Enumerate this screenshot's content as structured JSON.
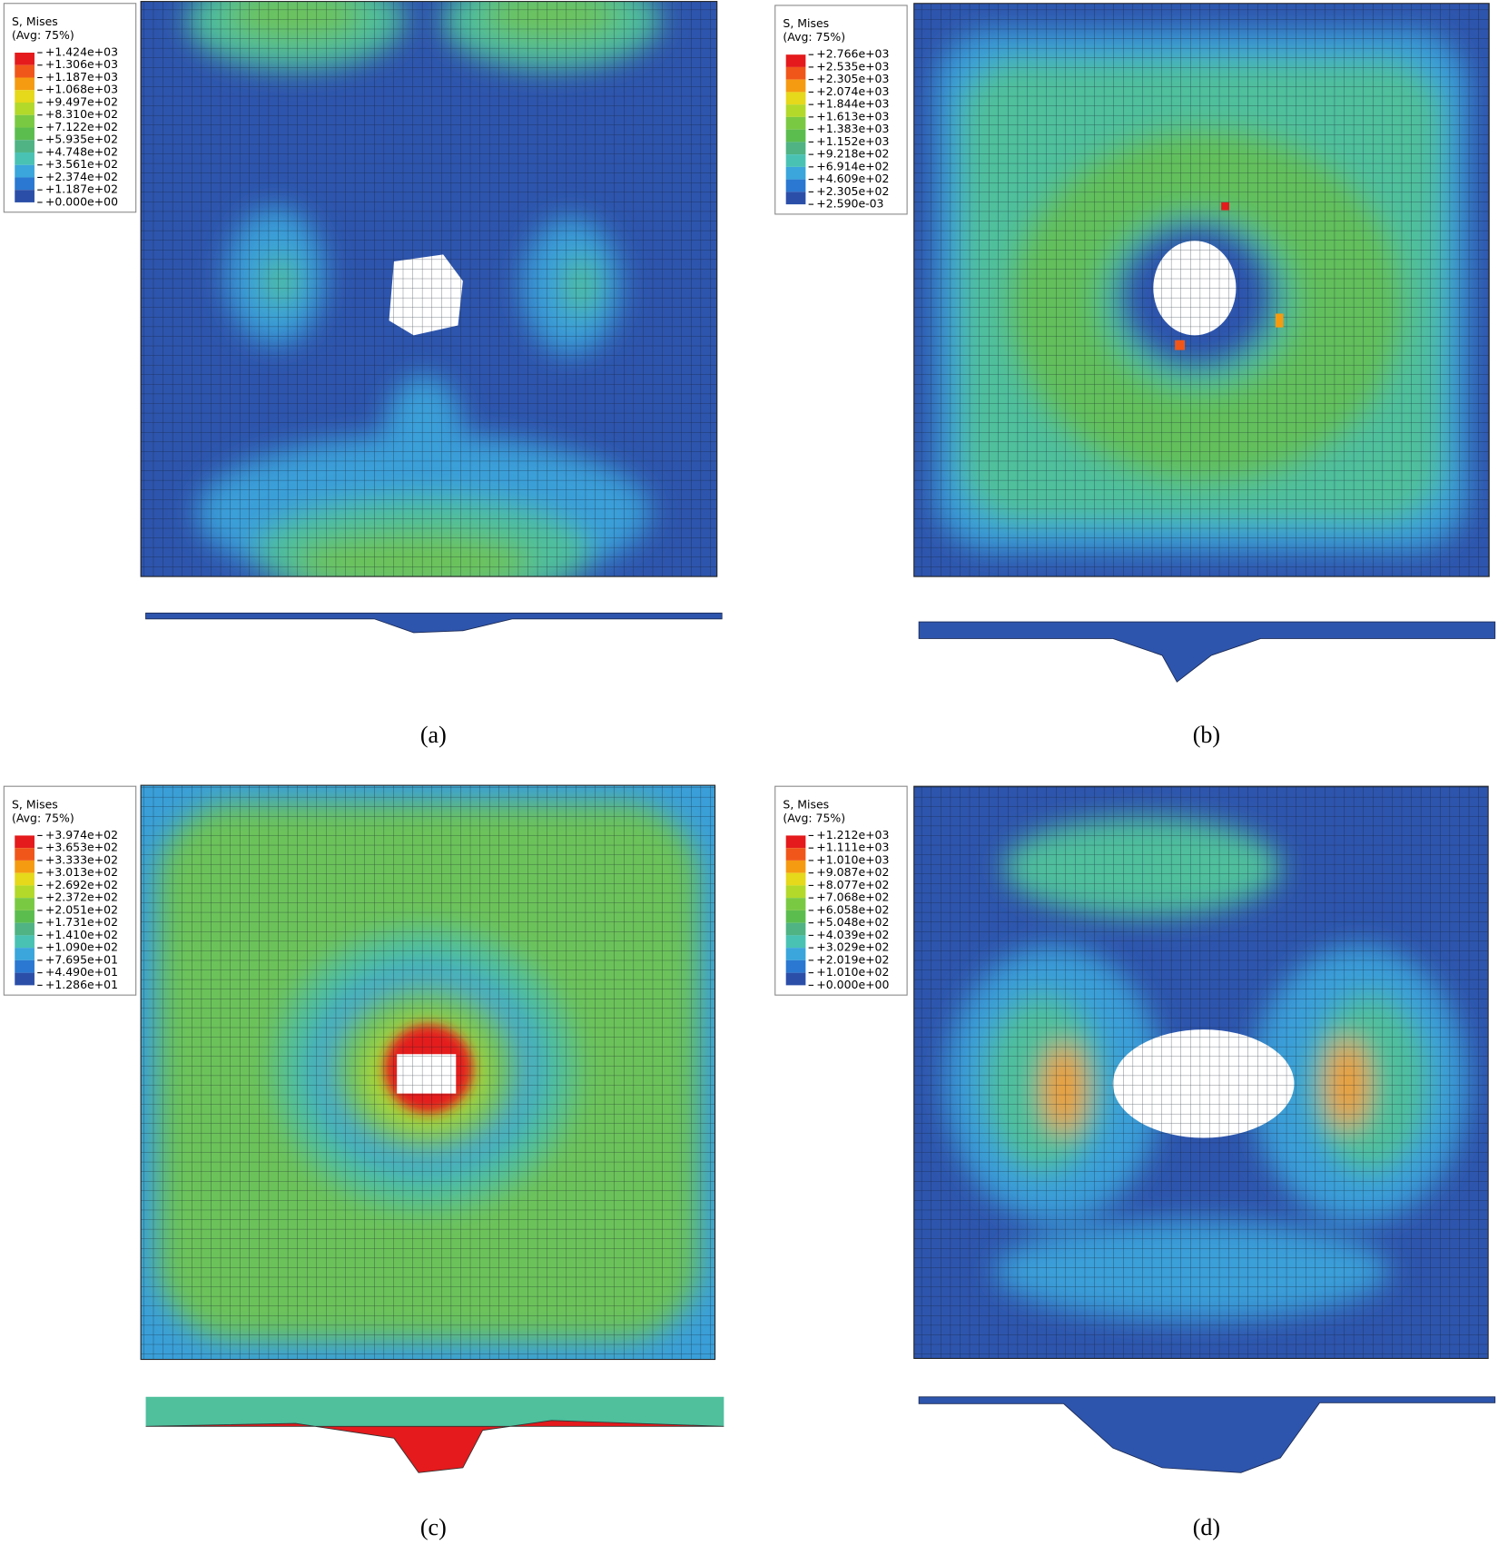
{
  "panels": [
    {
      "legend": {
        "title": "S, Mises",
        "subtitle": "(Avg: 75%)",
        "levels": [
          "+1.424e+03",
          "+1.306e+03",
          "+1.187e+03",
          "+1.068e+03",
          "+9.497e+02",
          "+8.310e+02",
          "+7.122e+02",
          "+5.935e+02",
          "+4.748e+02",
          "+3.561e+02",
          "+2.374e+02",
          "+1.187e+02",
          "+0.000e+00"
        ]
      },
      "caption": "(a)"
    },
    {
      "legend": {
        "title": "S, Mises",
        "subtitle": "(Avg: 75%)",
        "levels": [
          "+2.766e+03",
          "+2.535e+03",
          "+2.305e+03",
          "+2.074e+03",
          "+1.844e+03",
          "+1.613e+03",
          "+1.383e+03",
          "+1.152e+03",
          "+9.218e+02",
          "+6.914e+02",
          "+4.609e+02",
          "+2.305e+02",
          "+2.590e-03"
        ]
      },
      "caption": "(b)"
    },
    {
      "legend": {
        "title": "S, Mises",
        "subtitle": "(Avg: 75%)",
        "levels": [
          "+3.974e+02",
          "+3.653e+02",
          "+3.333e+02",
          "+3.013e+02",
          "+2.692e+02",
          "+2.372e+02",
          "+2.051e+02",
          "+1.731e+02",
          "+1.410e+02",
          "+1.090e+02",
          "+7.695e+01",
          "+4.490e+01",
          "+1.286e+01"
        ]
      },
      "caption": "(c)"
    },
    {
      "legend": {
        "title": "S, Mises",
        "subtitle": "(Avg: 75%)",
        "levels": [
          "+1.212e+03",
          "+1.111e+03",
          "+1.010e+03",
          "+9.087e+02",
          "+8.077e+02",
          "+7.068e+02",
          "+6.058e+02",
          "+5.048e+02",
          "+4.039e+02",
          "+3.029e+02",
          "+2.019e+02",
          "+1.010e+02",
          "+0.000e+00"
        ]
      },
      "caption": "(d)"
    }
  ]
}
